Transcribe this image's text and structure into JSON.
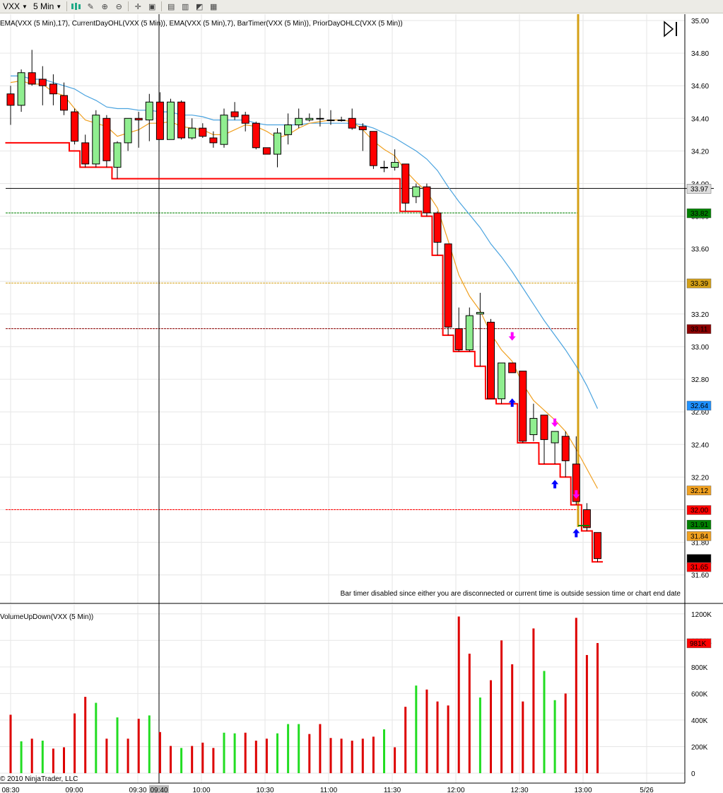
{
  "toolbar": {
    "instrument": "VXX",
    "interval": "5 Min",
    "icons": [
      "bar-type-icon",
      "draw-tool-icon",
      "zoom-in-icon",
      "zoom-out-icon",
      "crosshair-icon",
      "properties-icon",
      "indicators-icon",
      "strategies-icon",
      "chart-trader-icon",
      "data-box-icon"
    ]
  },
  "indicator_label": "EMA(VXX (5 Min),17), CurrentDayOHL(VXX (5 Min)), EMA(VXX (5 Min),7), BarTimer(VXX (5 Min)), PriorDayOHLC(VXX (5 Min))",
  "volume_label": "VolumeUpDown(VXX (5 Min))",
  "bar_timer_message": "Bar timer disabled since either you are disconnected or current time is outside session time or chart end date",
  "copyright": "© 2010 NinjaTrader, LLC",
  "crosshair_time": "09:40",
  "colors": {
    "up": "#90ee90",
    "down": "#ff0000",
    "ema17": "#4aa3df",
    "ema7": "#f0a020",
    "low_line": "#ff0000",
    "gold": "#d4a017"
  },
  "chart_data": [
    {
      "type": "candlestick",
      "ylim": [
        31.5,
        35.0
      ],
      "y_ticks": [
        "35.00",
        "34.80",
        "34.60",
        "34.40",
        "34.20",
        "34.00",
        "33.80",
        "33.60",
        "33.40",
        "33.20",
        "33.00",
        "32.80",
        "32.60",
        "32.40",
        "32.20",
        "32.00",
        "31.80",
        "31.60"
      ],
      "x_ticks": [
        "08:30",
        "09:00",
        "09:30",
        "09:40",
        "10:00",
        "10:30",
        "11:00",
        "11:30",
        "12:00",
        "12:30",
        "13:00",
        "5/26"
      ],
      "candles": [
        {
          "o": 34.55,
          "h": 34.6,
          "l": 34.36,
          "c": 34.48
        },
        {
          "o": 34.48,
          "h": 34.7,
          "l": 34.44,
          "c": 34.68
        },
        {
          "o": 34.68,
          "h": 34.82,
          "l": 34.6,
          "c": 34.61
        },
        {
          "o": 34.64,
          "h": 34.72,
          "l": 34.48,
          "c": 34.6
        },
        {
          "o": 34.61,
          "h": 34.67,
          "l": 34.48,
          "c": 34.55
        },
        {
          "o": 34.54,
          "h": 34.62,
          "l": 34.42,
          "c": 34.45
        },
        {
          "o": 34.44,
          "h": 34.46,
          "l": 34.24,
          "c": 34.26
        },
        {
          "o": 34.25,
          "h": 34.3,
          "l": 34.1,
          "c": 34.12
        },
        {
          "o": 34.12,
          "h": 34.45,
          "l": 34.1,
          "c": 34.42
        },
        {
          "o": 34.4,
          "h": 34.42,
          "l": 34.1,
          "c": 34.14
        },
        {
          "o": 34.1,
          "h": 34.26,
          "l": 34.03,
          "c": 34.25
        },
        {
          "o": 34.25,
          "h": 34.4,
          "l": 34.2,
          "c": 34.4
        },
        {
          "o": 34.4,
          "h": 34.44,
          "l": 34.22,
          "c": 34.39
        },
        {
          "o": 34.39,
          "h": 34.55,
          "l": 34.26,
          "c": 34.5
        },
        {
          "o": 34.5,
          "h": 34.56,
          "l": 34.27,
          "c": 34.27
        },
        {
          "o": 34.27,
          "h": 34.52,
          "l": 34.27,
          "c": 34.5
        },
        {
          "o": 34.5,
          "h": 34.51,
          "l": 34.27,
          "c": 34.28
        },
        {
          "o": 34.28,
          "h": 34.4,
          "l": 34.27,
          "c": 34.34
        },
        {
          "o": 34.34,
          "h": 34.37,
          "l": 34.28,
          "c": 34.29
        },
        {
          "o": 34.28,
          "h": 34.32,
          "l": 34.22,
          "c": 34.25
        },
        {
          "o": 34.24,
          "h": 34.46,
          "l": 34.22,
          "c": 34.42
        },
        {
          "o": 34.44,
          "h": 34.5,
          "l": 34.39,
          "c": 34.41
        },
        {
          "o": 34.42,
          "h": 34.44,
          "l": 34.32,
          "c": 34.37
        },
        {
          "o": 34.37,
          "h": 34.38,
          "l": 34.21,
          "c": 34.22
        },
        {
          "o": 34.22,
          "h": 34.22,
          "l": 34.18,
          "c": 34.18
        },
        {
          "o": 34.18,
          "h": 34.34,
          "l": 34.1,
          "c": 34.31
        },
        {
          "o": 34.3,
          "h": 34.43,
          "l": 34.24,
          "c": 34.36
        },
        {
          "o": 34.36,
          "h": 34.46,
          "l": 34.34,
          "c": 34.4
        },
        {
          "o": 34.39,
          "h": 34.43,
          "l": 34.38,
          "c": 34.4
        },
        {
          "o": 34.4,
          "h": 34.46,
          "l": 34.35,
          "c": 34.4
        },
        {
          "o": 34.39,
          "h": 34.45,
          "l": 34.36,
          "c": 34.39
        },
        {
          "o": 34.39,
          "h": 34.41,
          "l": 34.38,
          "c": 34.39
        },
        {
          "o": 34.4,
          "h": 34.46,
          "l": 34.33,
          "c": 34.34
        },
        {
          "o": 34.35,
          "h": 34.37,
          "l": 34.2,
          "c": 34.33
        },
        {
          "o": 34.32,
          "h": 34.32,
          "l": 34.09,
          "c": 34.11
        },
        {
          "o": 34.1,
          "h": 34.14,
          "l": 34.07,
          "c": 34.1
        },
        {
          "o": 34.1,
          "h": 34.21,
          "l": 34.08,
          "c": 34.13
        },
        {
          "o": 34.12,
          "h": 34.12,
          "l": 33.83,
          "c": 33.88
        },
        {
          "o": 33.92,
          "h": 34.0,
          "l": 33.88,
          "c": 33.98
        },
        {
          "o": 33.98,
          "h": 34.0,
          "l": 33.8,
          "c": 33.82
        },
        {
          "o": 33.82,
          "h": 33.83,
          "l": 33.56,
          "c": 33.64
        },
        {
          "o": 33.63,
          "h": 33.63,
          "l": 33.07,
          "c": 33.12
        },
        {
          "o": 33.11,
          "h": 33.24,
          "l": 32.97,
          "c": 32.98
        },
        {
          "o": 32.98,
          "h": 33.24,
          "l": 32.97,
          "c": 33.19
        },
        {
          "o": 33.2,
          "h": 33.33,
          "l": 32.88,
          "c": 33.21
        },
        {
          "o": 33.15,
          "h": 33.17,
          "l": 32.68,
          "c": 32.68
        },
        {
          "o": 32.68,
          "h": 32.9,
          "l": 32.65,
          "c": 32.9
        },
        {
          "o": 32.9,
          "h": 32.9,
          "l": 32.84,
          "c": 32.84
        },
        {
          "o": 32.85,
          "h": 32.85,
          "l": 32.41,
          "c": 32.42
        },
        {
          "o": 32.46,
          "h": 32.65,
          "l": 32.42,
          "c": 32.56
        },
        {
          "o": 32.58,
          "h": 32.58,
          "l": 32.28,
          "c": 32.43
        },
        {
          "o": 32.41,
          "h": 32.48,
          "l": 32.28,
          "c": 32.48
        },
        {
          "o": 32.45,
          "h": 32.48,
          "l": 32.2,
          "c": 32.3
        },
        {
          "o": 32.28,
          "h": 32.45,
          "l": 32.03,
          "c": 32.05
        },
        {
          "o": 32.0,
          "h": 32.04,
          "l": 31.87,
          "c": 31.89
        },
        {
          "o": 31.86,
          "h": 31.86,
          "l": 31.68,
          "c": 31.7
        }
      ],
      "ema17": [
        34.66,
        34.66,
        34.64,
        34.64,
        34.62,
        34.6,
        34.58,
        34.54,
        34.51,
        34.47,
        34.46,
        34.46,
        34.45,
        34.45,
        34.44,
        34.44,
        34.42,
        34.42,
        34.41,
        34.39,
        34.39,
        34.39,
        34.39,
        34.37,
        34.36,
        34.36,
        34.36,
        34.36,
        34.37,
        34.37,
        34.37,
        34.37,
        34.37,
        34.36,
        34.34,
        34.31,
        34.28,
        34.24,
        34.2,
        34.15,
        34.08,
        33.98,
        33.89,
        33.81,
        33.73,
        33.63,
        33.55,
        33.46,
        33.36,
        33.26,
        33.16,
        33.07,
        32.98,
        32.88,
        32.76,
        32.62
      ],
      "ema7": [
        34.62,
        34.63,
        34.61,
        34.61,
        34.56,
        34.54,
        34.46,
        34.39,
        34.37,
        34.35,
        34.29,
        34.31,
        34.33,
        34.37,
        34.37,
        34.38,
        34.35,
        34.34,
        34.33,
        34.3,
        34.3,
        34.33,
        34.36,
        34.35,
        34.32,
        34.28,
        34.3,
        34.34,
        34.37,
        34.38,
        34.39,
        34.39,
        34.38,
        34.33,
        34.26,
        34.21,
        34.17,
        34.08,
        34.01,
        33.95,
        33.85,
        33.65,
        33.44,
        33.31,
        33.22,
        33.08,
        32.98,
        32.91,
        32.77,
        32.67,
        32.61,
        32.55,
        32.48,
        32.37,
        32.25,
        32.13
      ],
      "day_low_steps": [
        34.25,
        34.25,
        34.25,
        34.25,
        34.25,
        34.25,
        34.2,
        34.1,
        34.1,
        34.1,
        34.03,
        34.03,
        34.03,
        34.03,
        34.03,
        34.03,
        34.03,
        34.03,
        34.03,
        34.03,
        34.03,
        34.03,
        34.03,
        34.03,
        34.03,
        34.03,
        34.03,
        34.03,
        34.03,
        34.03,
        34.03,
        34.03,
        34.03,
        34.03,
        34.03,
        34.03,
        34.03,
        33.83,
        33.83,
        33.8,
        33.56,
        33.07,
        32.97,
        32.97,
        32.88,
        32.68,
        32.65,
        32.65,
        32.41,
        32.41,
        32.28,
        32.28,
        32.2,
        32.03,
        31.87,
        31.68
      ],
      "horizontal_lines": [
        {
          "label": "33.97",
          "value": 33.97,
          "color": "#000000",
          "style": "solid"
        },
        {
          "label": "33.82",
          "value": 33.82,
          "color": "#008000",
          "style": "dash"
        },
        {
          "label": "33.39",
          "value": 33.39,
          "color": "#d4a017",
          "style": "dash"
        },
        {
          "label": "33.11",
          "value": 33.11,
          "color": "#8b0000",
          "style": "dash"
        },
        {
          "label": "32.00",
          "value": 32.0,
          "color": "#ff0000",
          "style": "dash"
        }
      ],
      "price_markers": [
        {
          "label": "32.64",
          "value": 32.64,
          "color": "#1e90ff"
        },
        {
          "label": "32.12",
          "value": 32.12,
          "color": "#f0a020"
        },
        {
          "label": "31.91",
          "value": 31.91,
          "color": "#008000"
        },
        {
          "label": "31.84",
          "value": 31.84,
          "color": "#f0a020"
        },
        {
          "label": "31.70",
          "value": 31.7,
          "color": "#000000"
        },
        {
          "label": "31.65",
          "value": 31.65,
          "color": "#ff0000"
        }
      ],
      "signals": [
        {
          "bar": 47,
          "type": "down",
          "price": 33.05
        },
        {
          "bar": 47,
          "type": "up",
          "price": 32.67
        },
        {
          "bar": 51,
          "type": "down",
          "price": 32.52
        },
        {
          "bar": 51,
          "type": "up",
          "price": 32.17
        },
        {
          "bar": 53,
          "type": "down",
          "price": 32.08
        },
        {
          "bar": 53,
          "type": "up",
          "price": 31.87
        }
      ]
    },
    {
      "type": "bar",
      "title": "VolumeUpDown(VXX (5 Min))",
      "ylim": [
        0,
        1250
      ],
      "y_ticks": [
        "1200K",
        "1000K",
        "800K",
        "600K",
        "400K",
        "200K",
        "0"
      ],
      "last_value_label": "981K",
      "values_k": [
        440,
        240,
        260,
        245,
        185,
        195,
        450,
        575,
        530,
        260,
        420,
        260,
        410,
        435,
        310,
        205,
        190,
        205,
        230,
        190,
        305,
        300,
        305,
        245,
        260,
        300,
        370,
        370,
        295,
        370,
        265,
        260,
        245,
        260,
        275,
        330,
        195,
        500,
        660,
        630,
        540,
        510,
        1180,
        900,
        570,
        700,
        1000,
        820,
        540,
        1090,
        770,
        550,
        600,
        1170,
        890,
        980
      ],
      "up_down": [
        "d",
        "u",
        "d",
        "u",
        "d",
        "d",
        "d",
        "d",
        "u",
        "d",
        "u",
        "d",
        "d",
        "u",
        "d",
        "d",
        "u",
        "d",
        "d",
        "d",
        "u",
        "u",
        "d",
        "d",
        "d",
        "u",
        "u",
        "u",
        "d",
        "d",
        "d",
        "d",
        "d",
        "d",
        "d",
        "u",
        "d",
        "d",
        "u",
        "d",
        "d",
        "d",
        "d",
        "d",
        "u",
        "d",
        "d",
        "d",
        "d",
        "d",
        "u",
        "u",
        "d",
        "d",
        "d",
        "d"
      ]
    }
  ]
}
